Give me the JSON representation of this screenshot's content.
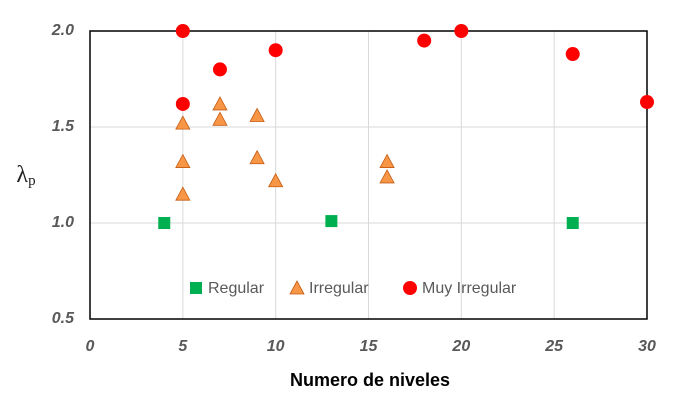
{
  "chart_data": {
    "type": "scatter",
    "xlabel": "Numero de niveles",
    "ylabel": {
      "main": "λ",
      "sub": "p"
    },
    "xlim": [
      0,
      30
    ],
    "ylim": [
      0.5,
      2.0
    ],
    "xticks": [
      0,
      5,
      10,
      15,
      20,
      25,
      30
    ],
    "yticks": [
      {
        "value": 0.5,
        "label": "0.5"
      },
      {
        "value": 1.0,
        "label": "1.0"
      },
      {
        "value": 1.5,
        "label": "1.5"
      },
      {
        "value": 2.0,
        "label": "2.0"
      }
    ],
    "grid": true,
    "legend": "bottom",
    "series": [
      {
        "name": "Regular",
        "color": "#00b050",
        "marker": "square",
        "x": [
          4,
          13,
          26
        ],
        "values": [
          1.0,
          1.01,
          1.0
        ]
      },
      {
        "name": "Irregular",
        "color": "#f79646",
        "marker": "triangle",
        "x": [
          5,
          5,
          5,
          7,
          7,
          9,
          9,
          10,
          16,
          16
        ],
        "values": [
          1.52,
          1.32,
          1.15,
          1.62,
          1.54,
          1.56,
          1.34,
          1.22,
          1.32,
          1.24
        ]
      },
      {
        "name": "Muy Irregular",
        "color": "#ff0000",
        "marker": "circle",
        "x": [
          5,
          5,
          7,
          10,
          18,
          20,
          26,
          30
        ],
        "values": [
          2.0,
          1.62,
          1.8,
          1.9,
          1.95,
          2.0,
          1.88,
          1.63
        ]
      }
    ]
  }
}
